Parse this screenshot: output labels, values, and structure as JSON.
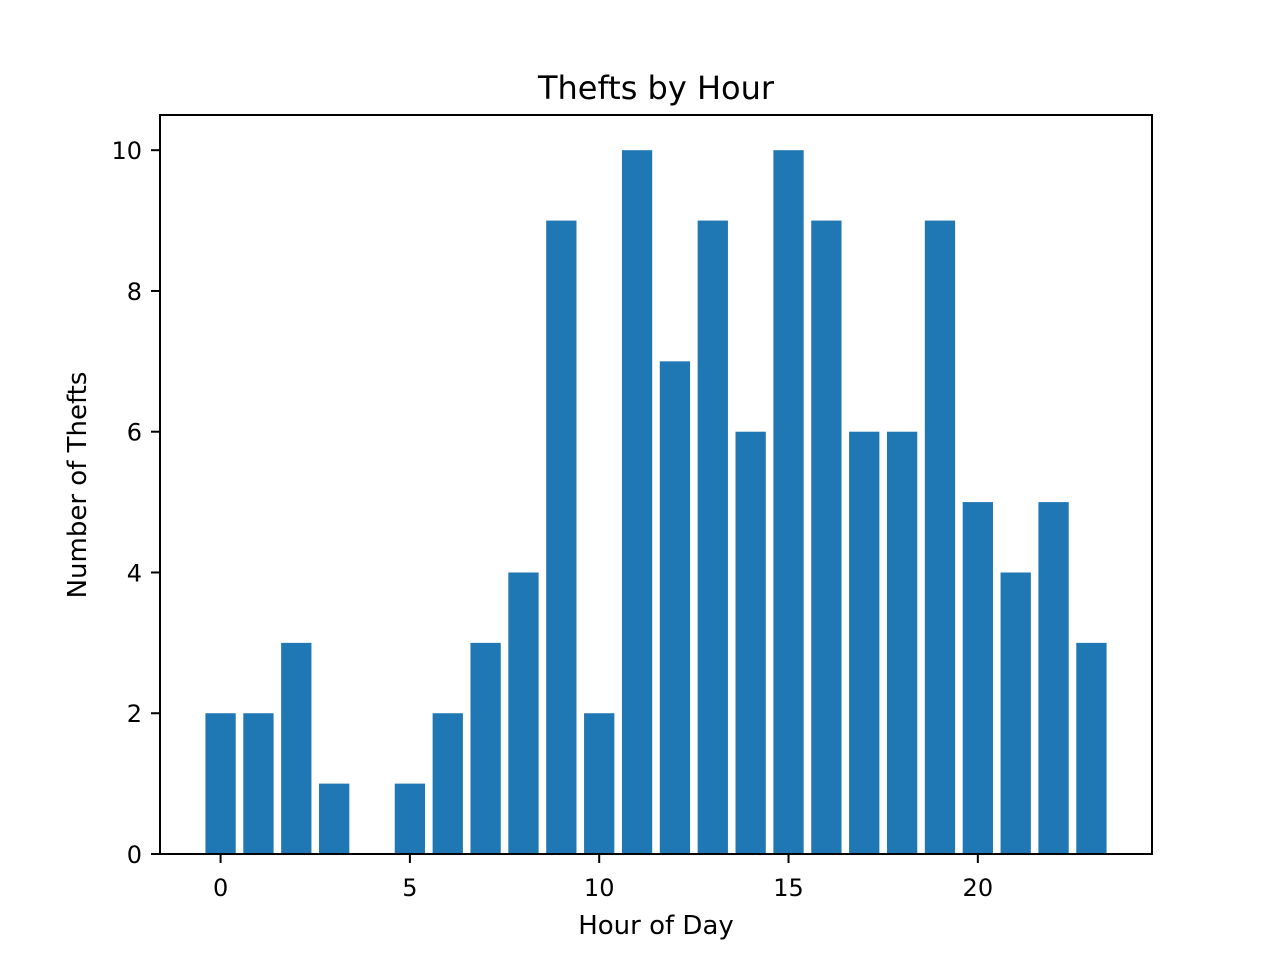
{
  "chart_data": {
    "type": "bar",
    "title": "Thefts by Hour",
    "xlabel": "Hour of Day",
    "ylabel": "Number of Thefts",
    "x": [
      0,
      1,
      2,
      3,
      4,
      5,
      6,
      7,
      8,
      9,
      10,
      11,
      12,
      13,
      14,
      15,
      16,
      17,
      18,
      19,
      20,
      21,
      22,
      23
    ],
    "values": [
      2,
      2,
      3,
      1,
      0,
      1,
      2,
      3,
      4,
      9,
      2,
      10,
      7,
      9,
      6,
      10,
      9,
      6,
      6,
      9,
      5,
      4,
      5,
      3
    ],
    "xlim": [
      -1.6,
      24.6
    ],
    "ylim": [
      0,
      10.5
    ],
    "xticks": [
      0,
      5,
      10,
      15,
      20
    ],
    "yticks": [
      0,
      2,
      4,
      6,
      8,
      10
    ],
    "bar_width": 0.8,
    "color": "#1f77b4",
    "grid": false,
    "legend": "none"
  }
}
